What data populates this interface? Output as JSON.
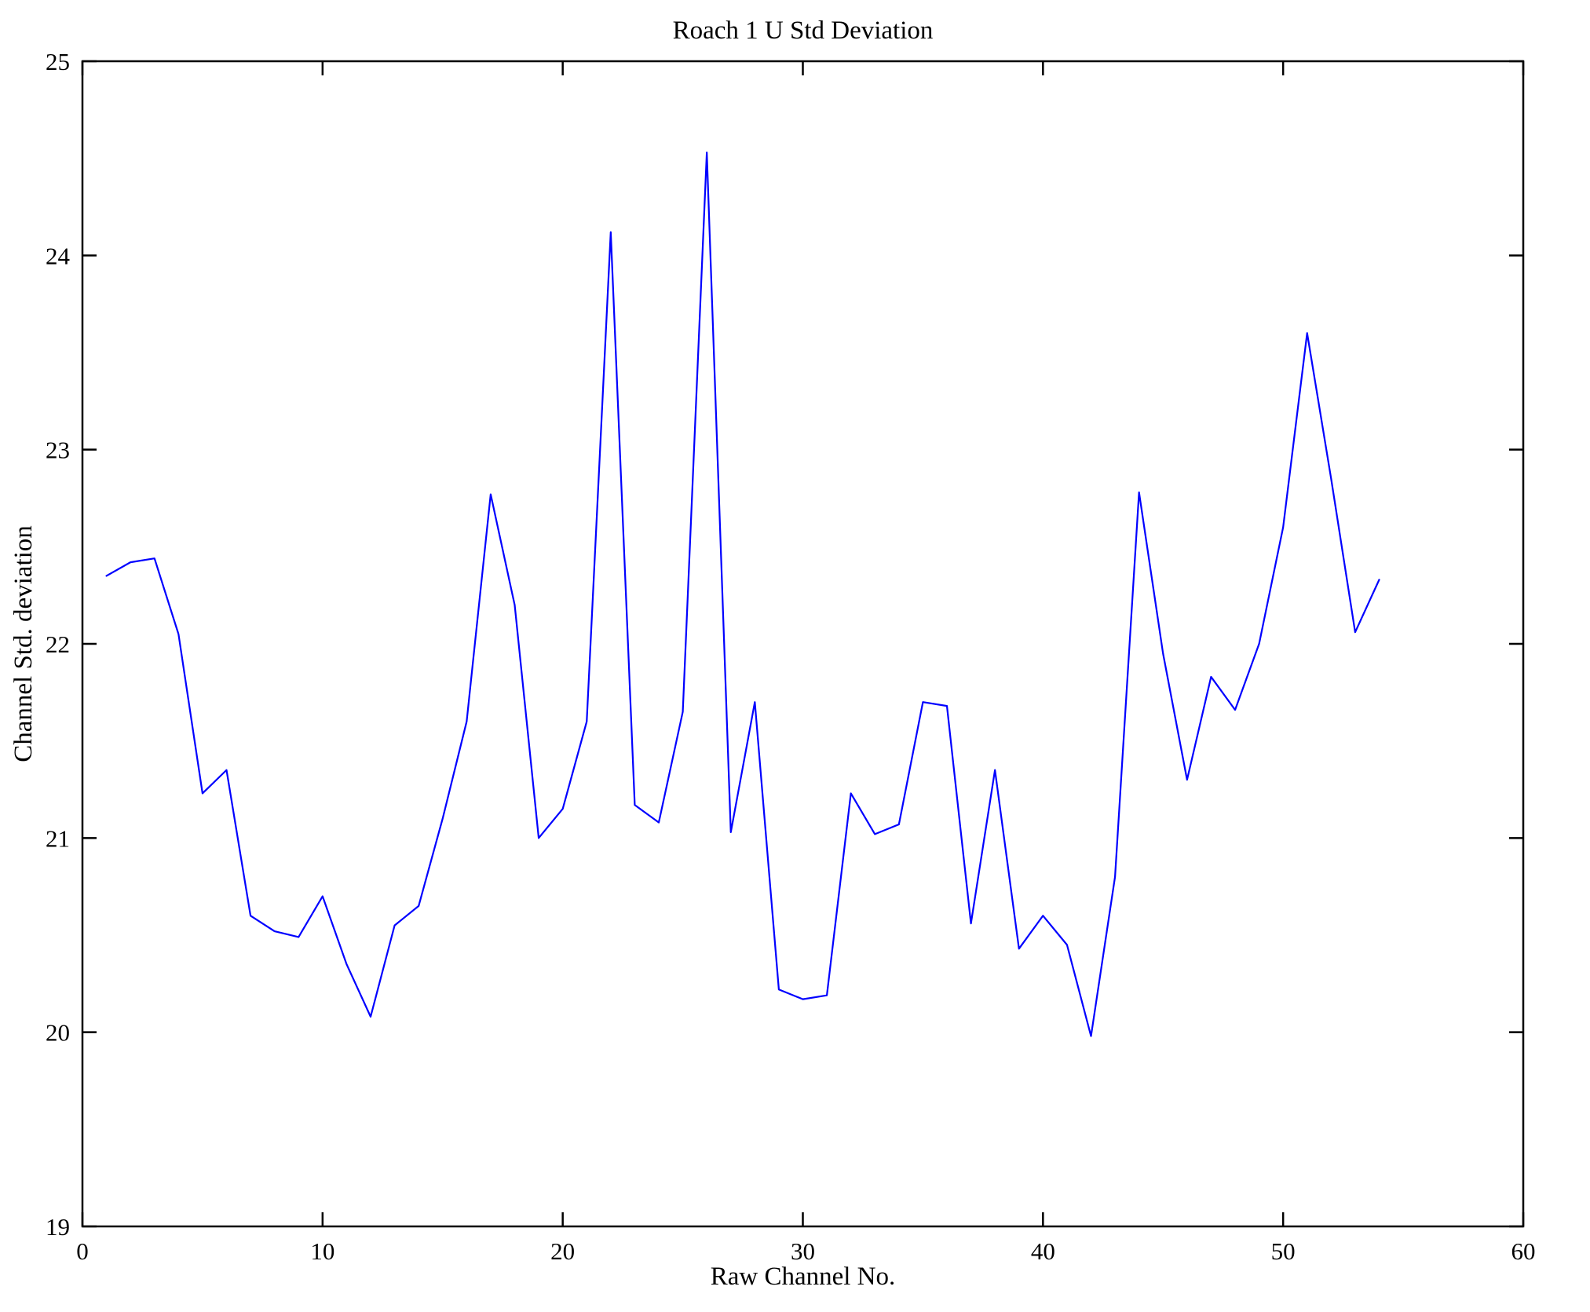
{
  "chart_data": {
    "type": "line",
    "title": "Roach 1 U Std Deviation",
    "xlabel": "Raw Channel No.",
    "ylabel": "Channel Std. deviation",
    "xlim": [
      0,
      60
    ],
    "ylim": [
      19,
      25
    ],
    "xticks": [
      0,
      10,
      20,
      30,
      40,
      50,
      60
    ],
    "yticks": [
      19,
      20,
      21,
      22,
      23,
      24,
      25
    ],
    "grid": false,
    "legend": null,
    "line_color": "#0000ff",
    "frame_color": "#000000",
    "x": [
      1,
      2,
      3,
      4,
      5,
      6,
      7,
      8,
      9,
      10,
      11,
      12,
      13,
      14,
      15,
      16,
      17,
      18,
      19,
      20,
      21,
      22,
      23,
      24,
      25,
      26,
      27,
      28,
      29,
      30,
      31,
      32,
      33,
      34,
      35,
      36,
      37,
      38,
      39,
      40,
      41,
      42,
      43,
      44,
      45,
      46,
      47,
      48,
      49,
      50,
      51,
      52,
      53,
      54
    ],
    "y": [
      22.35,
      22.42,
      22.44,
      22.05,
      21.23,
      21.35,
      20.6,
      20.52,
      20.49,
      20.7,
      20.35,
      20.08,
      20.55,
      20.65,
      21.1,
      21.6,
      22.77,
      22.2,
      21.0,
      21.15,
      21.6,
      24.12,
      21.17,
      21.08,
      21.65,
      24.53,
      21.03,
      21.7,
      20.22,
      20.17,
      20.19,
      21.23,
      21.02,
      21.07,
      21.7,
      21.68,
      20.56,
      21.35,
      20.43,
      20.6,
      20.45,
      19.98,
      20.8,
      22.78,
      21.95,
      21.3,
      21.83,
      21.66,
      22.0,
      22.6,
      23.6,
      22.85,
      22.06,
      22.33
    ]
  }
}
